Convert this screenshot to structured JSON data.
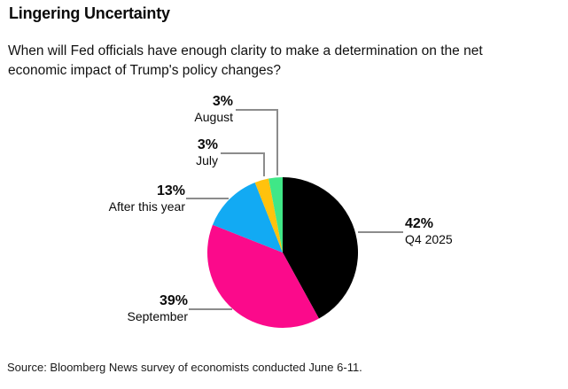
{
  "header": {
    "title": "Lingering Uncertainty",
    "subtitle_line1": "When will Fed officials have enough clarity to make a determination on the net",
    "subtitle_line2": "economic impact of Trump's policy changes?"
  },
  "chart_data": {
    "type": "pie",
    "title": "Lingering Uncertainty",
    "subtitle": "When will Fed officials have enough clarity to make a determination on the net economic impact of Trump's policy changes?",
    "unit": "percent",
    "direction": "clockwise",
    "start_angle_deg": 0,
    "label_style": "callout",
    "legend": "none",
    "leader_line_color": "#8C8C8C",
    "slices": [
      {
        "label": "Q4 2025",
        "value": 42,
        "pct_label": "42%",
        "color": "#000000"
      },
      {
        "label": "September",
        "value": 39,
        "pct_label": "39%",
        "color": "#FB0A8B"
      },
      {
        "label": "After this year",
        "value": 13,
        "pct_label": "13%",
        "color": "#12AAF3"
      },
      {
        "label": "July",
        "value": 3,
        "pct_label": "3%",
        "color": "#FFC20D"
      },
      {
        "label": "August",
        "value": 3,
        "pct_label": "3%",
        "color": "#3FE787"
      }
    ]
  },
  "footer": {
    "source": "Source: Bloomberg News survey of economists conducted June 6-11."
  }
}
